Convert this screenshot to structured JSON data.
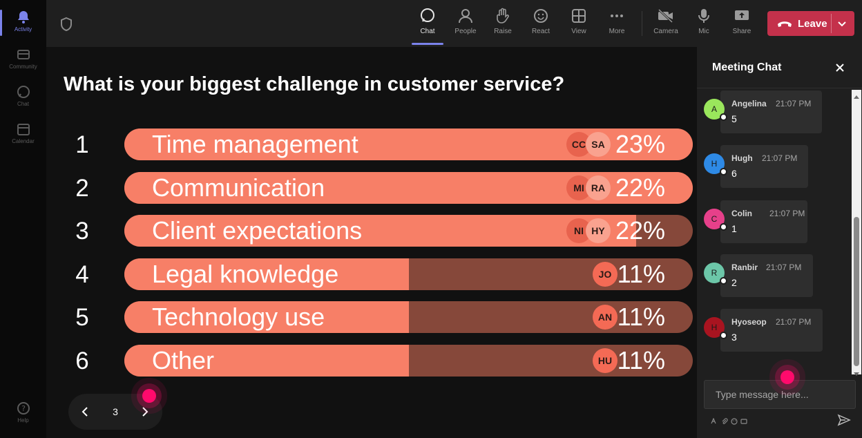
{
  "rail": {
    "items": [
      {
        "label": "Activity",
        "icon": "bell-icon",
        "active": true
      },
      {
        "label": "Community",
        "icon": "community-icon",
        "active": false
      },
      {
        "label": "Chat",
        "icon": "chat-icon",
        "active": false
      },
      {
        "label": "Calendar",
        "icon": "calendar-icon",
        "active": false
      },
      {
        "label": "Help",
        "icon": "help-icon",
        "active": false
      }
    ]
  },
  "toolbar": {
    "chat": "Chat",
    "people": "People",
    "raise": "Raise",
    "react": "React",
    "view": "View",
    "more": "More",
    "camera": "Camera",
    "mic": "Mic",
    "share": "Share",
    "leave": "Leave",
    "accent": "#7b83eb",
    "leave_color": "#c4314b"
  },
  "poll": {
    "question": "What is your biggest challenge in customer service?",
    "options": [
      {
        "num": "1",
        "label": "Time management",
        "pct": "23%",
        "fill": 1.0,
        "avatars": [
          "CC",
          "SA"
        ]
      },
      {
        "num": "2",
        "label": "Communication",
        "pct": "22%",
        "fill": 1.0,
        "avatars": [
          "MI",
          "RA"
        ]
      },
      {
        "num": "3",
        "label": "Client expectations",
        "pct": "22%",
        "fill": 0.9,
        "avatars": [
          "NI",
          "HY"
        ]
      },
      {
        "num": "4",
        "label": "Legal knowledge",
        "pct": "11%",
        "fill": 0.5,
        "avatars": [
          "JO"
        ]
      },
      {
        "num": "5",
        "label": "Technology use",
        "pct": "11%",
        "fill": 0.5,
        "avatars": [
          "AN"
        ]
      },
      {
        "num": "6",
        "label": "Other",
        "pct": "11%",
        "fill": 0.5,
        "avatars": [
          "HU"
        ]
      }
    ],
    "bar_color": "#f77f67",
    "track_color": "#86483a",
    "page": "3"
  },
  "chat": {
    "title": "Meeting Chat",
    "placeholder": "Type message here...",
    "messages": [
      {
        "initial": "A",
        "name": "Angelina",
        "time": "21:07 PM",
        "text": "5",
        "color": "#9ae65c"
      },
      {
        "initial": "H",
        "name": "Hugh",
        "time": "21:07 PM",
        "text": "6",
        "color": "#2e8ae6"
      },
      {
        "initial": "C",
        "name": "Colin",
        "time": "21:07 PM",
        "text": "1",
        "color": "#e6408a"
      },
      {
        "initial": "R",
        "name": "Ranbir",
        "time": "21:07 PM",
        "text": "2",
        "color": "#6cc6a8"
      },
      {
        "initial": "H",
        "name": "Hyoseop",
        "time": "21:07 PM",
        "text": "3",
        "color": "#a81420"
      }
    ]
  }
}
